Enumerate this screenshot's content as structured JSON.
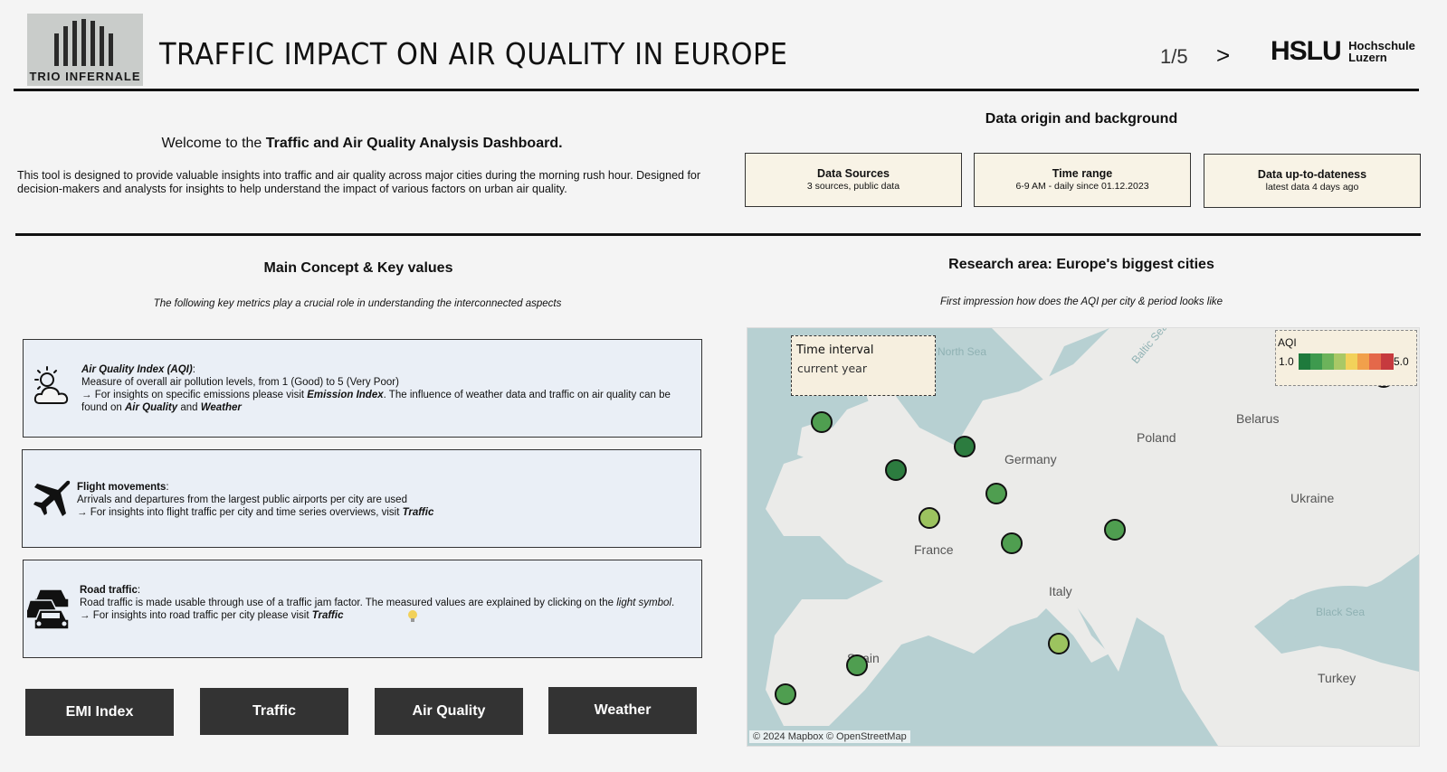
{
  "header": {
    "logo_text": "TRIO INFERNALE",
    "title": "TRAFFIC IMPACT ON AIR QUALITY IN EUROPE",
    "page_indicator": "1/5",
    "next_label": ">",
    "org_big": "HSLU",
    "org_small_1": "Hochschule",
    "org_small_2": "Luzern"
  },
  "welcome": {
    "prefix": "Welcome to the ",
    "bold": "Traffic and Air Quality Analysis Dashboard.",
    "intro": "This tool is designed to provide valuable insights into traffic and air quality across major cities during the morning rush hour. Designed for decision-makers and analysts for insights to help understand the impact of various factors on urban air quality."
  },
  "origin": {
    "title": "Data origin and background",
    "boxes": [
      {
        "title": "Data Sources",
        "sub": "3 sources, public data"
      },
      {
        "title": "Time range",
        "sub": "6-9 AM - daily since 01.12.2023"
      },
      {
        "title": "Data up-to-dateness",
        "sub": "latest data 4 days ago"
      }
    ]
  },
  "concept": {
    "title": "Main Concept & Key values",
    "subtitle": "The following key metrics play a crucial role in understanding the interconnected aspects",
    "aqi": {
      "heading": "Air Quality Index (AQI)",
      "line1": "Measure of overall air pollution levels, from 1 (Good) to 5 (Very Poor)",
      "line2a": "→ For insights on specific emissions please visit ",
      "line2b": "Emission Index",
      "line2c": ". The influence of weather data and traffic on air quality can be found on ",
      "line2d": "Air Quality",
      "line2e": " and ",
      "line2f": "Weather"
    },
    "flight": {
      "heading": "Flight movements",
      "line1": "Arrivals and departures from the largest public airports per city are used",
      "line2a": "→  For insights into flight traffic per city and time series overviews, visit ",
      "line2b": "Traffic"
    },
    "road": {
      "heading": "Road traffic",
      "line1a": "Road traffic is made usable through use of a traffic jam factor. The measured values are explained by clicking on the ",
      "line1b": "light symbol",
      "line2a": "→  For insights into road traffic per city please visit ",
      "line2b": "Traffic"
    }
  },
  "nav_buttons": [
    "EMI Index",
    "Traffic",
    "Air Quality",
    "Weather"
  ],
  "research": {
    "title": "Research area: Europe's biggest cities",
    "subtitle": "First impression how does the AQI per city & period looks like",
    "time_interval_label": "Time interval",
    "time_interval_value": "current year",
    "legend_title": "AQI",
    "legend_min": "1.0",
    "legend_max": "5.0",
    "legend_colors": [
      "#1e7a3c",
      "#3e9a4e",
      "#6cb35b",
      "#a9c866",
      "#f2d15a",
      "#f1a04b",
      "#e4684a",
      "#c63a3e"
    ],
    "country_labels": [
      "Poland",
      "Belarus",
      "Germany",
      "Ukraine",
      "France",
      "Italy",
      "Spain",
      "Turkey"
    ],
    "sea_labels": [
      "Black Sea",
      "North Sea",
      "Baltic Sea"
    ],
    "copyright": "© 2024 Mapbox © OpenStreetMap",
    "cities": [
      {
        "color": "#4f9e50"
      },
      {
        "color": "#2c7c3f"
      },
      {
        "color": "#2c7c3f"
      },
      {
        "color": "#4f9e50"
      },
      {
        "color": "#9cc35f"
      },
      {
        "color": "#4f9e50"
      },
      {
        "color": "#4f9e50"
      },
      {
        "color": "#9cc35f"
      },
      {
        "color": "#4f9e50"
      },
      {
        "color": "#4f9e50"
      },
      {
        "color": "#4f9e50"
      }
    ]
  }
}
